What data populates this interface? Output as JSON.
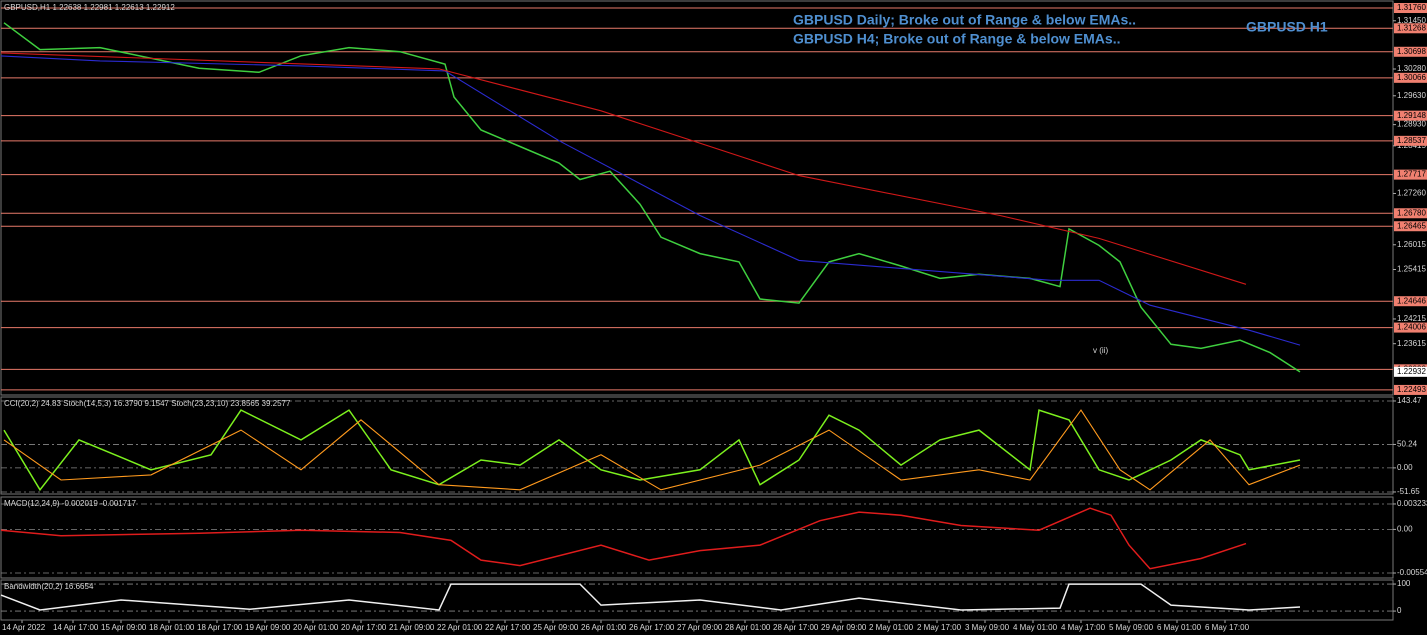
{
  "chart_data": [
    {
      "type": "line",
      "title": "GBPUSD,H1 1.22638 1.22981 1.22613 1.22912",
      "annotations": [
        "GBPUSD Daily; Broke out of Range & below EMAs..",
        "GBPUSD H4; Broke out of Range & below EMAs..",
        "GBPUSD H1",
        "v  (ii)"
      ],
      "xlim": [
        -7,
        457
      ],
      "ylim": [
        1.2237,
        1.3193
      ],
      "xticks": [
        {
          "value": 0,
          "label": "14 Apr 2022"
        },
        {
          "value": 17,
          "label": "14 Apr 17:00"
        },
        {
          "value": 33,
          "label": "15 Apr 09:00"
        },
        {
          "value": 49,
          "label": "18 Apr 01:00"
        },
        {
          "value": 65,
          "label": "18 Apr 17:00"
        },
        {
          "value": 81,
          "label": "19 Apr 09:00"
        },
        {
          "value": 97,
          "label": "20 Apr 01:00"
        },
        {
          "value": 113,
          "label": "20 Apr 17:00"
        },
        {
          "value": 129,
          "label": "21 Apr 09:00"
        },
        {
          "value": 145,
          "label": "22 Apr 01:00"
        },
        {
          "value": 161,
          "label": "22 Apr 17:00"
        },
        {
          "value": 177,
          "label": "25 Apr 09:00"
        },
        {
          "value": 193,
          "label": "26 Apr 01:00"
        },
        {
          "value": 209,
          "label": "26 Apr 17:00"
        },
        {
          "value": 225,
          "label": "27 Apr 09:00"
        },
        {
          "value": 241,
          "label": "28 Apr 01:00"
        },
        {
          "value": 257,
          "label": "28 Apr 17:00"
        },
        {
          "value": 273,
          "label": "29 Apr 09:00"
        },
        {
          "value": 289,
          "label": "2 May 01:00"
        },
        {
          "value": 305,
          "label": "2 May 17:00"
        },
        {
          "value": 321,
          "label": "3 May 09:00"
        },
        {
          "value": 337,
          "label": "4 May 01:00"
        },
        {
          "value": 353,
          "label": "4 May 17:00"
        },
        {
          "value": 369,
          "label": "5 May 09:00"
        },
        {
          "value": 385,
          "label": "6 May 01:00"
        },
        {
          "value": 401,
          "label": "6 May 17:00"
        }
      ],
      "yticks": [
        {
          "value": 1.3145,
          "label": "1.31450"
        },
        {
          "value": 1.3028,
          "label": "1.30280"
        },
        {
          "value": 1.2963,
          "label": "1.29630"
        },
        {
          "value": 1.2893,
          "label": "1.28930"
        },
        {
          "value": 1.28415,
          "label": "1.28415"
        },
        {
          "value": 1.2726,
          "label": "1.27260"
        },
        {
          "value": 1.26015,
          "label": "1.26015"
        },
        {
          "value": 1.25415,
          "label": "1.25415"
        },
        {
          "value": 1.24215,
          "label": "1.24215"
        },
        {
          "value": 1.23615,
          "label": "1.23615"
        }
      ],
      "level_ticks": [
        {
          "value": 1.3176,
          "label": "1.31760"
        },
        {
          "value": 1.31268,
          "label": "1.31268"
        },
        {
          "value": 1.30698,
          "label": "1.30698"
        },
        {
          "value": 1.30066,
          "label": "1.30066"
        },
        {
          "value": 1.29148,
          "label": "1.29148"
        },
        {
          "value": 1.28537,
          "label": "1.28537"
        },
        {
          "value": 1.27717,
          "label": "1.27717"
        },
        {
          "value": 1.2678,
          "label": "1.26780"
        },
        {
          "value": 1.26465,
          "label": "1.26465"
        },
        {
          "value": 1.24646,
          "label": "1.24646"
        },
        {
          "value": 1.24006,
          "label": "1.24006"
        },
        {
          "value": 1.22993,
          "label": "1.22993"
        },
        {
          "value": 1.22493,
          "label": "1.22493"
        }
      ],
      "last_price": {
        "value": 1.22932,
        "label": "1.22932"
      },
      "series": [
        {
          "color": "#3fcf3f",
          "x": [
            -6,
            6,
            26,
            59,
            79,
            93,
            109,
            126,
            141,
            144,
            153,
            166,
            179,
            186,
            196,
            206,
            213,
            226,
            239,
            246,
            259,
            269,
            279,
            293,
            306,
            319,
            336,
            346,
            349,
            359,
            366,
            373,
            383,
            393,
            406,
            416,
            426
          ],
          "values": [
            1.314,
            1.3075,
            1.308,
            1.303,
            1.302,
            1.306,
            1.308,
            1.307,
            1.304,
            1.296,
            1.288,
            1.284,
            1.28,
            1.276,
            1.278,
            1.27,
            1.262,
            1.258,
            1.256,
            1.247,
            1.246,
            1.256,
            1.258,
            1.255,
            1.252,
            1.253,
            1.252,
            1.25,
            1.264,
            1.26,
            1.256,
            1.245,
            1.236,
            1.235,
            1.237,
            1.234,
            1.2293
          ]
        },
        {
          "color": "#2b2bd0",
          "x": [
            -7,
            26,
            93,
            141,
            179,
            226,
            259,
            293,
            343,
            359,
            376,
            409,
            426
          ],
          "values": [
            1.30598,
            1.30477,
            1.30356,
            1.30235,
            1.28541,
            1.26726,
            1.25637,
            1.25443,
            1.25153,
            1.25153,
            1.24548,
            1.23943,
            1.2358
          ]
        },
        {
          "color": "#d01818",
          "x": [
            -7,
            139,
            193,
            259,
            326,
            359,
            408
          ],
          "values": [
            1.30671,
            1.30283,
            1.29267,
            1.27694,
            1.26726,
            1.26169,
            1.25056
          ]
        }
      ]
    },
    {
      "type": "line",
      "title": "CCI(20,2) 24.83  Stoch(14,5,3) 16.3790 9.1547  Stoch(23,23,10) 23.8565 39.2577",
      "ylim": [
        -56,
        152
      ],
      "yticks": [
        {
          "value": 143.47,
          "label": "143.47"
        },
        {
          "value": 50.24,
          "label": "50.24"
        },
        {
          "value": 0,
          "label": "0.00"
        },
        {
          "value": -51.65,
          "label": "-51.65"
        }
      ],
      "series": [
        {
          "color": "#7cf01e",
          "x": [
            -6,
            6,
            19,
            43,
            63,
            73,
            93,
            109,
            123,
            139,
            153,
            166,
            179,
            193,
            206,
            226,
            239,
            246,
            259,
            269,
            279,
            293,
            306,
            319,
            336,
            339,
            349,
            359,
            369,
            383,
            393,
            406,
            409,
            426
          ],
          "values": [
            81,
            -47,
            60,
            -4,
            28,
            124,
            60,
            124,
            -4,
            -36,
            17,
            6,
            60,
            -4,
            -26,
            -4,
            60,
            -36,
            17,
            113,
            81,
            6,
            60,
            81,
            -4,
            124,
            103,
            -4,
            -26,
            17,
            60,
            28,
            -4,
            17
          ]
        },
        {
          "color": "#ff9a1e",
          "x": [
            -6,
            13,
            43,
            73,
            93,
            113,
            139,
            166,
            193,
            213,
            246,
            269,
            293,
            319,
            336,
            353,
            366,
            376,
            396,
            409,
            426
          ],
          "values": [
            60,
            -26,
            -15,
            81,
            -4,
            103,
            -36,
            -47,
            28,
            -47,
            6,
            81,
            -26,
            -4,
            -26,
            124,
            -4,
            -47,
            60,
            -36,
            6
          ]
        }
      ]
    },
    {
      "type": "line",
      "title": "MACD(12,24,9) -0.002019 -0.001717",
      "ylim": [
        -0.00618,
        0.00412
      ],
      "yticks": [
        {
          "value": 0.003233,
          "label": "0.003233"
        },
        {
          "value": 0,
          "label": "0.00"
        },
        {
          "value": -0.005546,
          "label": "-0.005546"
        }
      ],
      "series": [
        {
          "color": "#e01c1c",
          "x": [
            -7,
            13,
            59,
            93,
            126,
            143,
            153,
            166,
            193,
            209,
            226,
            246,
            266,
            279,
            293,
            313,
            339,
            356,
            363,
            369,
            376,
            393,
            408
          ],
          "values": [
            -0.0001,
            -0.0008,
            -0.0005,
            -0.0001,
            -0.0004,
            -0.0014,
            -0.0039,
            -0.0046,
            -0.002,
            -0.0039,
            -0.0027,
            -0.002,
            0.0011,
            0.0022,
            0.0018,
            0.0005,
            -0.0001,
            0.0027,
            0.0018,
            -0.002,
            -0.005,
            -0.0037,
            -0.0018
          ]
        }
      ]
    },
    {
      "type": "line",
      "title": "Bandwidth(20,2) 16.6654",
      "ylim": [
        -33,
        115
      ],
      "yticks": [
        100,
        0
      ],
      "series": [
        {
          "color": "#f0f0f0",
          "x": [
            -7,
            6,
            33,
            76,
            109,
            139,
            143,
            186,
            193,
            226,
            253,
            279,
            313,
            346,
            349,
            373,
            383,
            409,
            426
          ],
          "values": [
            59,
            4,
            41,
            7,
            41,
            4,
            100,
            100,
            22,
            41,
            4,
            48,
            4,
            11,
            100,
            100,
            22,
            4,
            15
          ]
        }
      ]
    }
  ]
}
